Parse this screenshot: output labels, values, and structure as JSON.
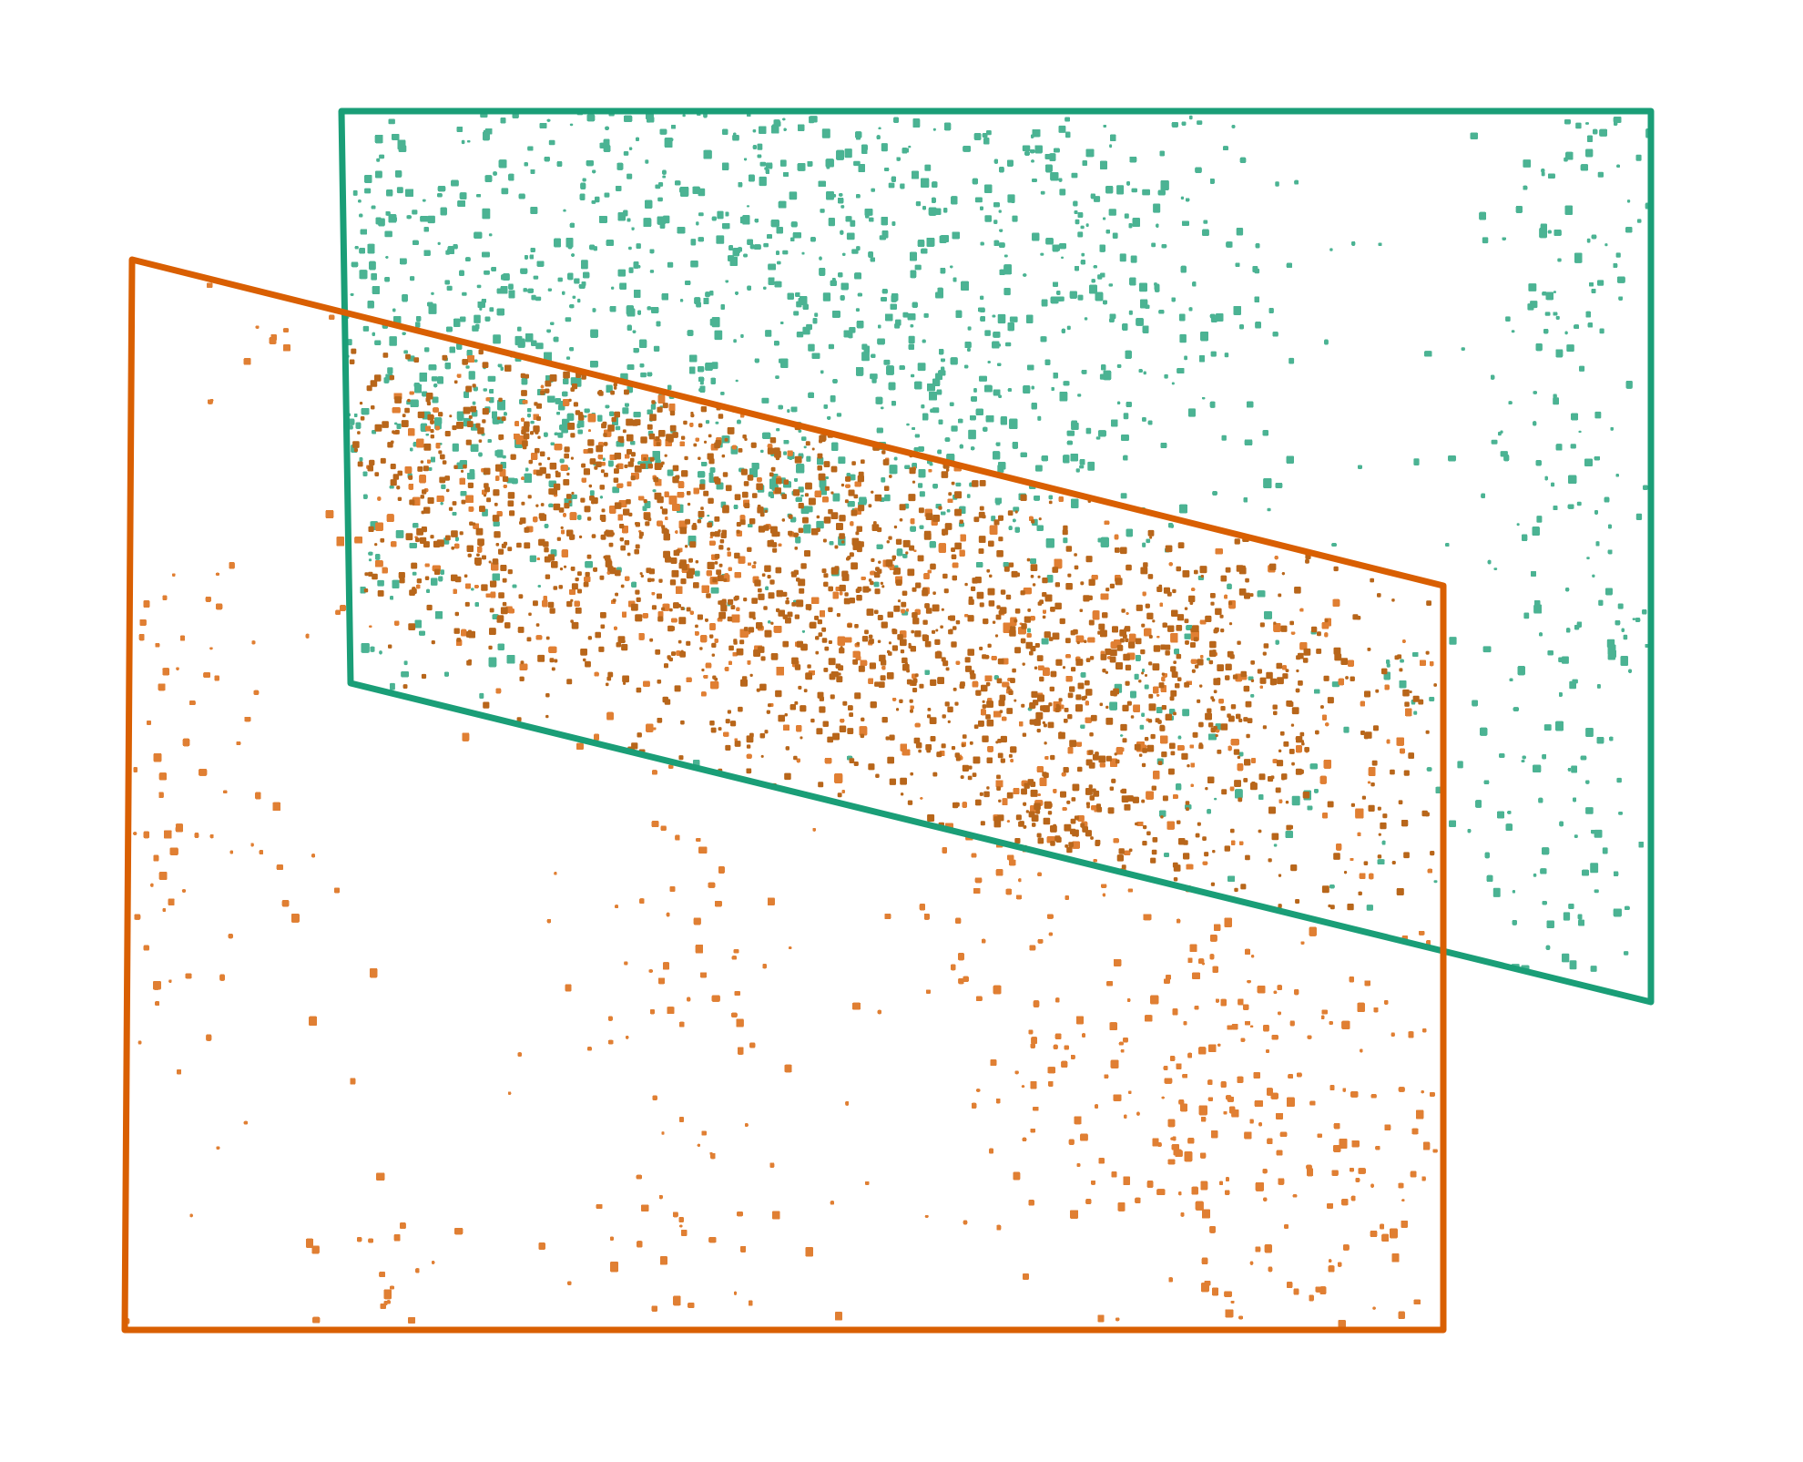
{
  "colors": {
    "background": "#ffffff",
    "teal_outline": "#1a9e77",
    "teal_fill": "#4bb393",
    "orange_outline": "#d95f02",
    "orange_fill": "#e07f33",
    "overlap_fill": "#b8661a"
  },
  "layers": [
    {
      "id": "teal-section",
      "outline_color": "teal_outline",
      "fill_color": "teal_fill",
      "kind": "segmented-cell-map"
    },
    {
      "id": "orange-section",
      "outline_color": "orange_outline",
      "fill_color": "orange_fill",
      "kind": "segmented-cell-map"
    }
  ]
}
